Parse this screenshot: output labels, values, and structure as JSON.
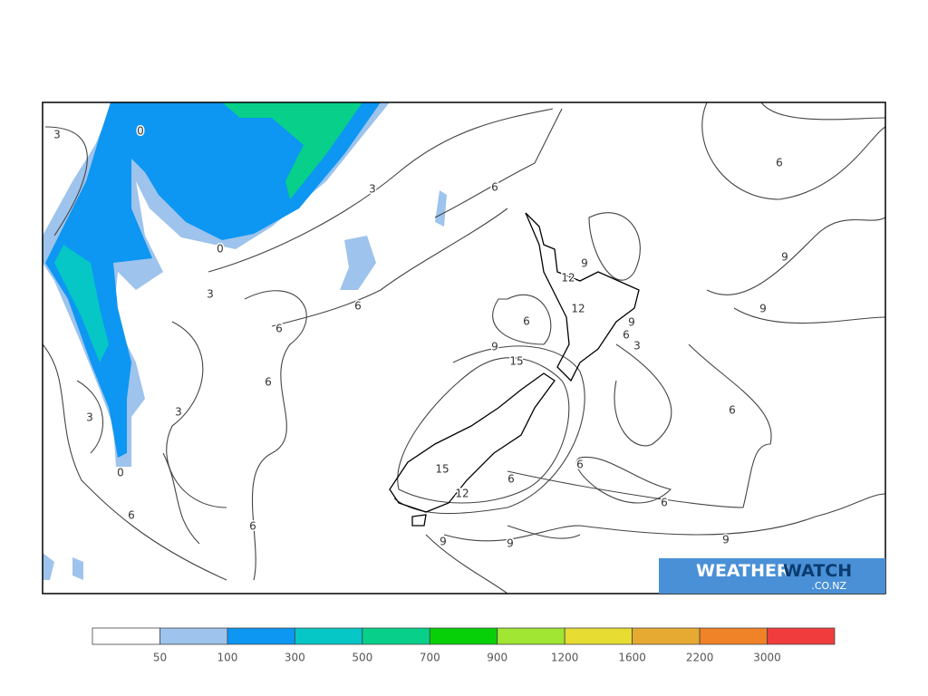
{
  "map": {
    "contour_labels": [
      "0",
      "3",
      "3",
      "6",
      "6",
      "0",
      "3",
      "6",
      "6",
      "9",
      "9",
      "12",
      "12",
      "9",
      "6",
      "9",
      "6",
      "3",
      "9",
      "15",
      "6",
      "3",
      "3",
      "6",
      "0",
      "6",
      "15",
      "6",
      "12",
      "6",
      "6",
      "6",
      "9",
      "9",
      "9"
    ],
    "logo": {
      "brand_a": "WEATHER",
      "brand_b": "WATCH",
      "domain": ".CO.NZ"
    }
  },
  "colorbar": {
    "colors": [
      "#ffffff",
      "#9ec3ec",
      "#0d96f2",
      "#07c6c6",
      "#08d08a",
      "#08d008",
      "#a0e632",
      "#e6dc32",
      "#e6aa32",
      "#f08228",
      "#f03c3c"
    ],
    "ticks": [
      50,
      100,
      300,
      500,
      700,
      900,
      1200,
      1600,
      2200,
      3000
    ]
  }
}
